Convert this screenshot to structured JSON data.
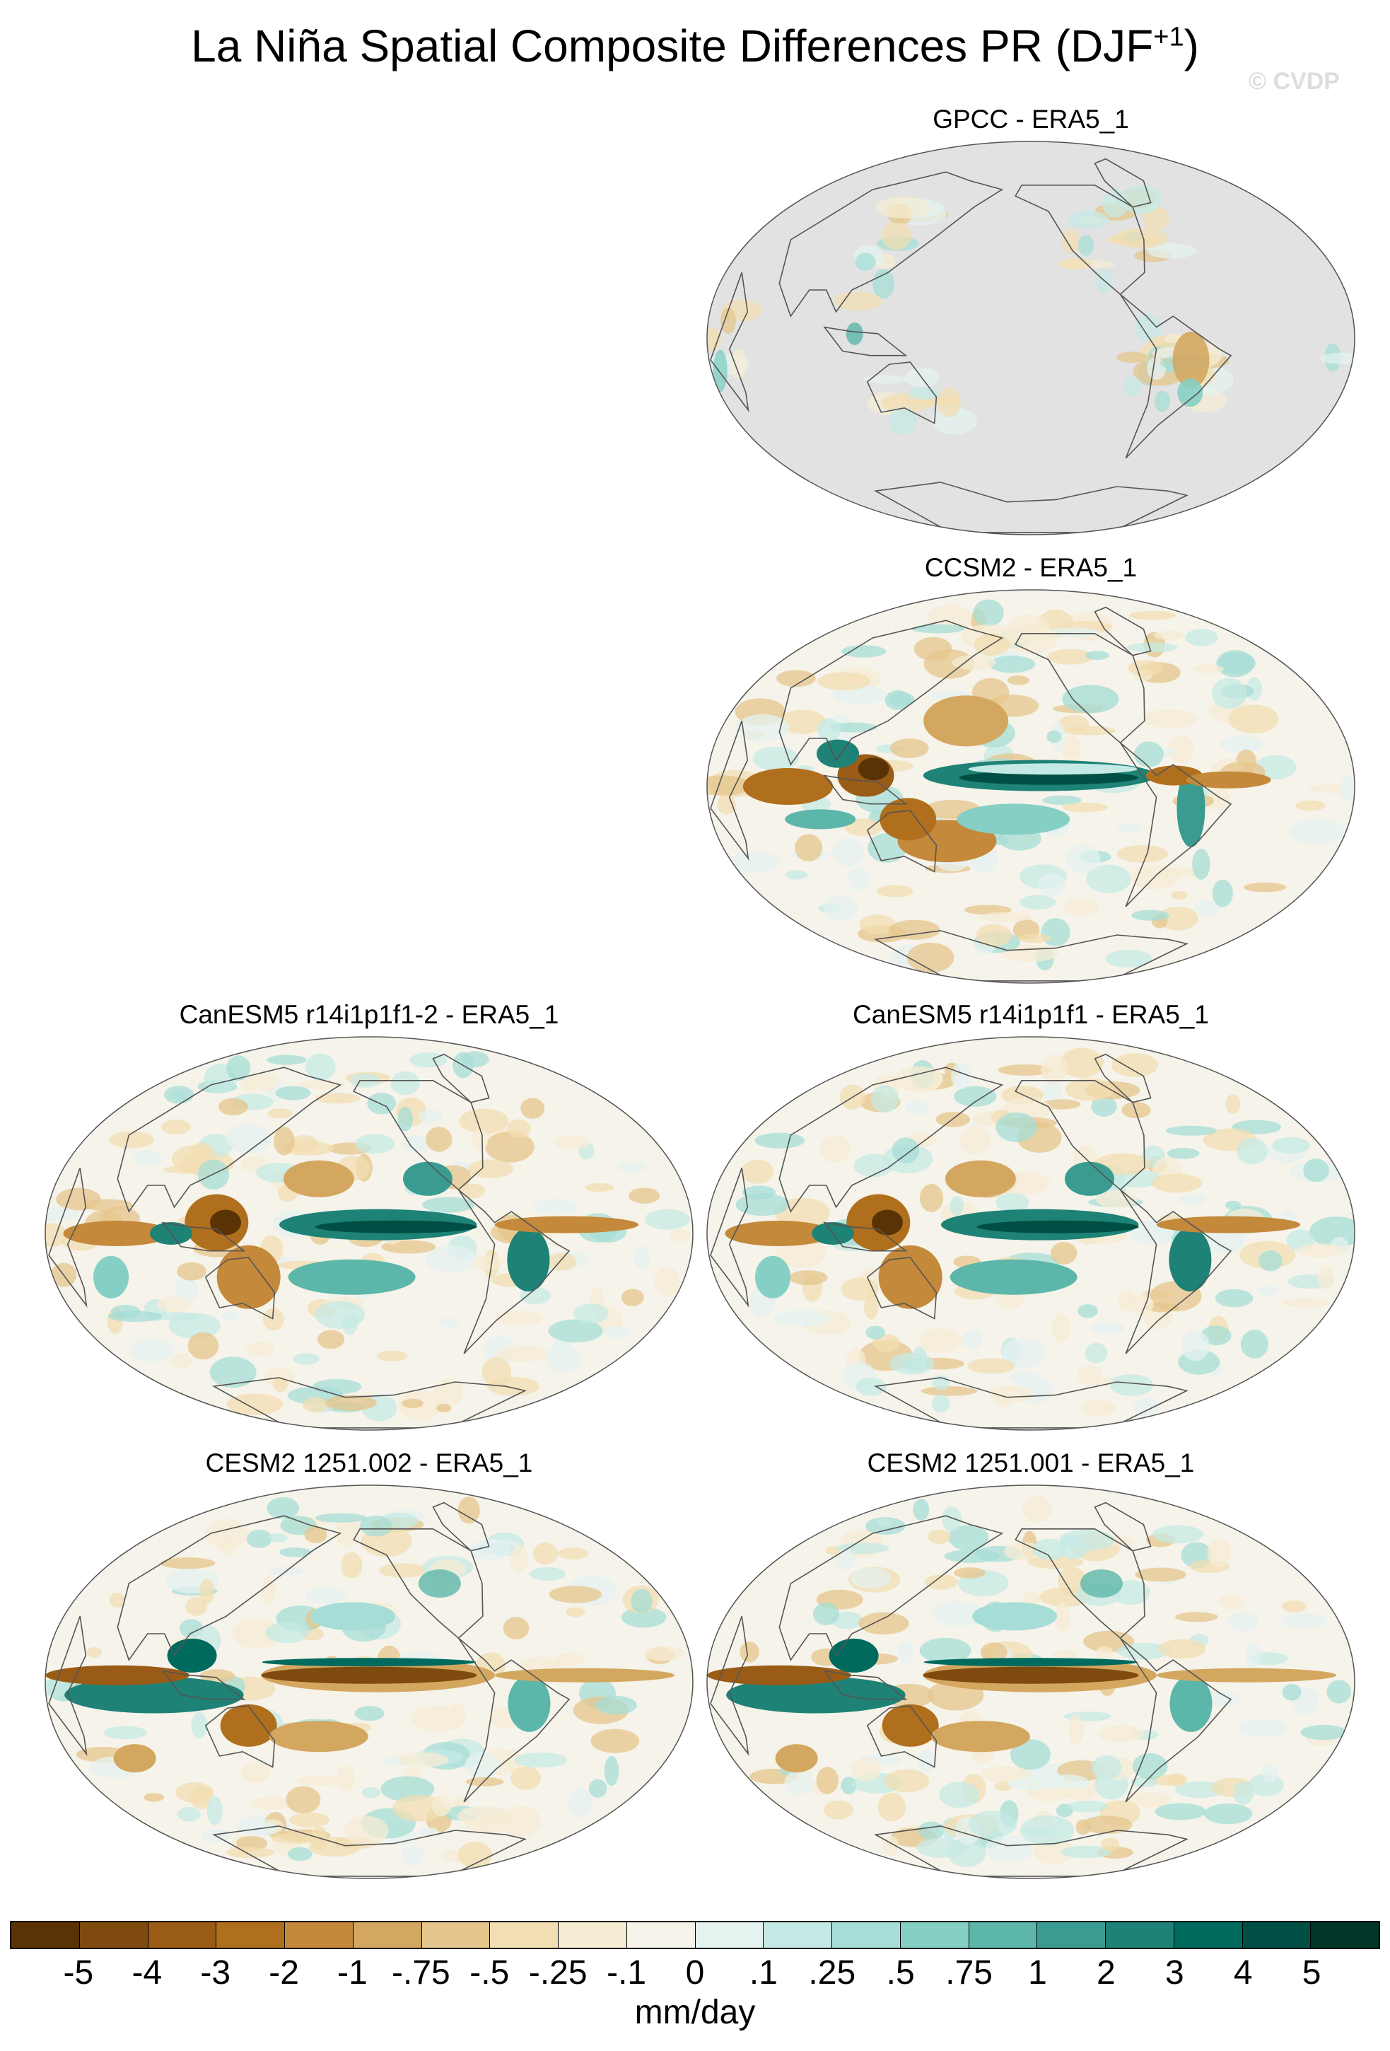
{
  "figure": {
    "title": "La Niña Spatial Composite Differences PR (DJF",
    "title_sup": "+1",
    "title_close": ")",
    "watermark": "© CVDP"
  },
  "panels": [
    {
      "id": "gpcc",
      "label": "GPCC - ERA5_1",
      "variant": "obs"
    },
    {
      "id": "ccsm2",
      "label": "CCSM2 - ERA5_1",
      "variant": "ccsm2"
    },
    {
      "id": "canesm5-2",
      "label": "CanESM5 r14i1p1f1-2 - ERA5_1",
      "variant": "canesm"
    },
    {
      "id": "canesm5-1",
      "label": "CanESM5 r14i1p1f1 - ERA5_1",
      "variant": "canesm"
    },
    {
      "id": "cesm2-002",
      "label": "CESM2 1251.002 - ERA5_1",
      "variant": "cesm2"
    },
    {
      "id": "cesm2-001",
      "label": "CESM2 1251.001 - ERA5_1",
      "variant": "cesm2"
    }
  ],
  "colorbar": {
    "colors": [
      "#5a3305",
      "#7e4a0e",
      "#9a5b16",
      "#b06f1d",
      "#c4893a",
      "#d4a760",
      "#e5c68c",
      "#f1deb2",
      "#f6ecd4",
      "#f5f3ea",
      "#e4f2f0",
      "#c5e9e4",
      "#a6ddd6",
      "#86cfc4",
      "#5cb7aa",
      "#3a9c90",
      "#1e8276",
      "#006a5e",
      "#004f44",
      "#003528"
    ],
    "labels": [
      "-5",
      "-4",
      "-3",
      "-2",
      "-1",
      "-.75",
      "-.5",
      "-.25",
      "-.1",
      "0",
      ".1",
      ".25",
      ".5",
      ".75",
      "1",
      "2",
      "3",
      "4",
      "5"
    ],
    "units": "mm/day"
  }
}
